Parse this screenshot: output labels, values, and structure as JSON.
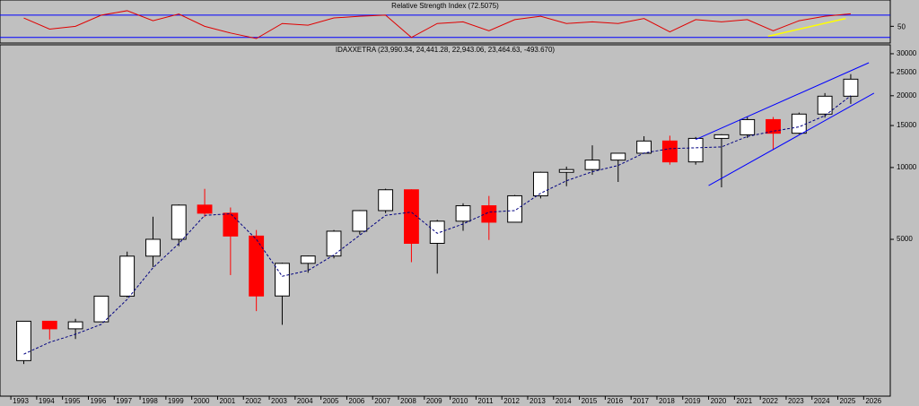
{
  "chart_data": [
    {
      "type": "line",
      "title": "Relative Strength Index (72.5075)",
      "x": [
        1993.5,
        1994.5,
        1995.5,
        1996.5,
        1997.5,
        1998.5,
        1999.5,
        2000.5,
        2001.5,
        2002.5,
        2003.5,
        2004.5,
        2005.5,
        2006.5,
        2007.5,
        2008.5,
        2009.5,
        2010.5,
        2011.5,
        2012.5,
        2013.5,
        2014.5,
        2015.5,
        2016.5,
        2017.5,
        2018.5,
        2019.5,
        2020.5,
        2021.5,
        2022.5,
        2023.5,
        2024.5,
        2025.5
      ],
      "series": [
        {
          "color": "#e00000",
          "values": [
            65,
            45,
            50,
            70,
            78,
            60,
            72,
            50,
            38,
            28,
            55,
            52,
            65,
            68,
            70,
            30,
            55,
            58,
            42,
            62,
            68,
            55,
            58,
            55,
            64,
            40,
            62,
            58,
            62,
            42,
            60,
            68,
            72.5
          ]
        }
      ],
      "levels": [
        70,
        30
      ],
      "level_color": "#0000ff",
      "trendline": {
        "color": "#ffff00",
        "x": [
          2022.3,
          2025.3
        ],
        "values": [
          32,
          64
        ]
      },
      "xlim": [
        1992.58,
        2027.03
      ],
      "ylim": [
        20,
        94
      ],
      "yticks": [
        50
      ]
    },
    {
      "type": "candlestick",
      "title": "IDAXXETRA (23,990.34, 24,441.28, 22,943.06, 23,464.63, -493.670)",
      "x": [
        1993.5,
        1994.5,
        1995.5,
        1996.5,
        1997.5,
        1998.5,
        1999.5,
        2000.5,
        2001.5,
        2002.5,
        2003.5,
        2004.5,
        2005.5,
        2006.5,
        2007.5,
        2008.5,
        2009.5,
        2010.5,
        2011.5,
        2012.5,
        2013.5,
        2014.5,
        2015.5,
        2016.5,
        2017.5,
        2018.5,
        2019.5,
        2020.5,
        2021.5,
        2022.5,
        2023.5,
        2024.5,
        2025.5
      ],
      "open": [
        1550,
        2267,
        2107,
        2254,
        2889,
        4250,
        5002,
        6958,
        6434,
        5160,
        2893,
        3965,
        4256,
        5408,
        6597,
        8067,
        4810,
        5957,
        6914,
        5898,
        7612,
        9552,
        9806,
        10743,
        11481,
        12918,
        10559,
        13249,
        13719,
        15885,
        13924,
        16752,
        19909
      ],
      "high": [
        2270,
        2270,
        2320,
        2890,
        4440,
        6220,
        7000,
        8140,
        6800,
        5470,
        3990,
        4270,
        5470,
        6630,
        8150,
        8100,
        6030,
        7080,
        7600,
        7670,
        9600,
        10090,
        12390,
        11480,
        13530,
        13600,
        13430,
        13800,
        16290,
        16290,
        17000,
        20520,
        24640
      ],
      "low": [
        1500,
        1900,
        1910,
        2250,
        2850,
        3830,
        4680,
        6200,
        3540,
        2500,
        2190,
        3620,
        4160,
        5240,
        6440,
        4010,
        3590,
        5430,
        4970,
        5900,
        7420,
        8350,
        9320,
        8700,
        11450,
        10280,
        10280,
        8260,
        13300,
        11860,
        13790,
        16200,
        18490
      ],
      "close": [
        2267,
        2107,
        2254,
        2889,
        4250,
        5002,
        6958,
        6434,
        5160,
        2893,
        3965,
        4256,
        5408,
        6597,
        8067,
        4810,
        5957,
        6914,
        5898,
        7612,
        9552,
        9806,
        10743,
        11481,
        12918,
        10559,
        13249,
        13719,
        15885,
        13924,
        16752,
        19909,
        23465
      ],
      "up_color": "#000000",
      "down_color": "#ff0000",
      "average": {
        "color": "#000080",
        "values": [
          1650,
          1850,
          2000,
          2200,
          2800,
          3800,
          4800,
          6300,
          6400,
          5000,
          3500,
          3700,
          4300,
          5200,
          6300,
          6500,
          5300,
          5800,
          6500,
          6600,
          7800,
          8800,
          9600,
          10200,
          11500,
          12000,
          12100,
          12200,
          13500,
          14200,
          14800,
          16500,
          20000
        ]
      },
      "channels": {
        "color": "#0000ff",
        "lines": [
          {
            "x": [
              2019.5,
              2026.2
            ],
            "values": [
              13100,
              27500
            ]
          },
          {
            "x": [
              2020.0,
              2026.4
            ],
            "values": [
              8400,
              20500
            ]
          }
        ]
      },
      "log_scale": true,
      "xlim": [
        1992.58,
        2027.03
      ],
      "ylim": [
        1100,
        32700
      ],
      "yticks": [
        5000,
        10000,
        15000,
        20000,
        25000,
        30000
      ],
      "xticks": [
        1993,
        1994,
        1995,
        1996,
        1997,
        1998,
        1999,
        2000,
        2001,
        2002,
        2003,
        2004,
        2005,
        2006,
        2007,
        2008,
        2009,
        2010,
        2011,
        2012,
        2013,
        2014,
        2015,
        2016,
        2017,
        2018,
        2019,
        2020,
        2021,
        2022,
        2023,
        2024,
        2025,
        2026
      ]
    }
  ]
}
